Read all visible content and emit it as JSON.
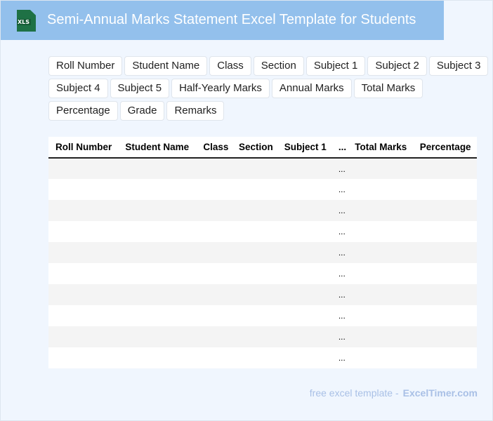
{
  "header": {
    "title": "Semi-Annual Marks Statement Excel Template for Students",
    "icon": "xls-file-icon",
    "icon_text": "XLS",
    "bg_color": "#93c0ec"
  },
  "tags": [
    "Roll Number",
    "Student Name",
    "Class",
    "Section",
    "Subject 1",
    "Subject 2",
    "Subject 3",
    "Subject 4",
    "Subject 5",
    "Half-Yearly Marks",
    "Annual Marks",
    "Total Marks",
    "Percentage",
    "Grade",
    "Remarks"
  ],
  "table": {
    "columns": [
      "Roll Number",
      "Student Name",
      "Class",
      "Section",
      "Subject 1",
      "...",
      "Total Marks",
      "Percentage"
    ],
    "rows": [
      [
        "",
        "",
        "",
        "",
        "",
        "...",
        "",
        ""
      ],
      [
        "",
        "",
        "",
        "",
        "",
        "...",
        "",
        ""
      ],
      [
        "",
        "",
        "",
        "",
        "",
        "...",
        "",
        ""
      ],
      [
        "",
        "",
        "",
        "",
        "",
        "...",
        "",
        ""
      ],
      [
        "",
        "",
        "",
        "",
        "",
        "...",
        "",
        ""
      ],
      [
        "",
        "",
        "",
        "",
        "",
        "...",
        "",
        ""
      ],
      [
        "",
        "",
        "",
        "",
        "",
        "...",
        "",
        ""
      ],
      [
        "",
        "",
        "",
        "",
        "",
        "...",
        "",
        ""
      ],
      [
        "",
        "",
        "",
        "",
        "",
        "...",
        "",
        ""
      ],
      [
        "",
        "",
        "",
        "",
        "",
        "...",
        "",
        ""
      ]
    ]
  },
  "footer": {
    "text": "free excel template -",
    "brand": "ExcelTimer.com"
  }
}
